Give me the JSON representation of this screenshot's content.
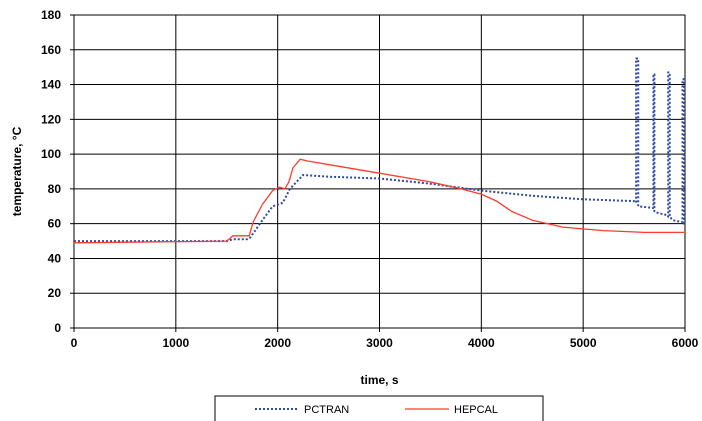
{
  "chart_data": {
    "type": "line",
    "title": "",
    "xlabel": "time, s",
    "ylabel": "temperature, °C",
    "xlim": [
      0,
      6000
    ],
    "ylim": [
      0,
      180
    ],
    "xticks": [
      0,
      1000,
      2000,
      3000,
      4000,
      5000,
      6000
    ],
    "yticks": [
      0,
      20,
      40,
      60,
      80,
      100,
      120,
      140,
      160,
      180
    ],
    "grid": true,
    "legend_position": "bottom",
    "series": [
      {
        "name": "PCTRAN",
        "color": "#2e4aa6",
        "style": "dotted",
        "x": [
          0,
          1500,
          1560,
          1700,
          1730,
          1850,
          1950,
          2050,
          2120,
          2250,
          2500,
          3000,
          3500,
          4000,
          4500,
          5000,
          5500,
          5520,
          5520,
          5540,
          5540,
          5690,
          5690,
          5700,
          5700,
          5740,
          5820,
          5835,
          5835,
          5850,
          5850,
          5880,
          5960,
          5975,
          5975,
          5990,
          5990,
          6000
        ],
        "y": [
          50,
          50,
          51,
          51,
          52,
          62,
          70,
          72,
          80,
          88,
          87,
          86,
          83,
          79,
          76,
          74,
          73,
          72,
          155,
          155,
          70,
          69,
          146,
          146,
          67,
          66,
          65,
          64,
          147,
          147,
          64,
          62,
          61,
          61,
          143,
          143,
          60,
          60
        ]
      },
      {
        "name": "HEPCAL",
        "color": "#ff3b2f",
        "style": "solid",
        "x": [
          0,
          1500,
          1560,
          1720,
          1760,
          1850,
          1950,
          2020,
          2070,
          2110,
          2150,
          2220,
          2300,
          2600,
          3000,
          3500,
          3800,
          4000,
          4150,
          4300,
          4500,
          4800,
          5200,
          5600,
          6000
        ],
        "y": [
          49,
          50,
          53,
          53,
          61,
          71,
          79,
          81,
          80,
          84,
          92,
          97,
          96,
          93,
          89,
          84,
          80,
          77,
          73,
          67,
          62,
          58,
          56,
          55,
          55
        ]
      }
    ]
  }
}
